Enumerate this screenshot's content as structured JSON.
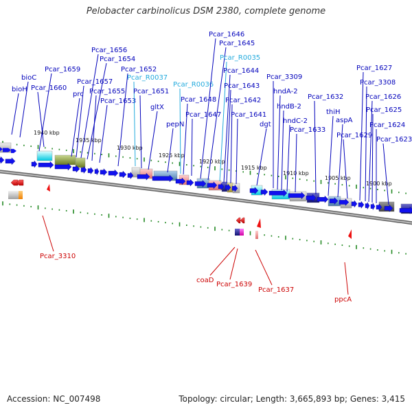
{
  "title": "Pelobacter carbinolicus DSM 2380, complete genome",
  "footer": {
    "accession": "Accession: NC_007498",
    "topology": "Topology: circular; Length: 3,665,893 bp; Genes: 3,415"
  },
  "colors": {
    "forward_label": "#0000bb",
    "rna_label": "#22aadd",
    "reverse_label": "#cc0000",
    "forward_arrow": "#1111ee",
    "reverse_arrow": "#ee1111",
    "backbone": "#888888",
    "tick": "#228822"
  },
  "scale_labels": [
    "1940 kbp",
    "1935 kbp",
    "1930 kbp",
    "1925 kbp",
    "1920 kbp",
    "1915 kbp",
    "1910 kbp",
    "1905 kbp",
    "1900 kbp"
  ],
  "forward_labels": [
    {
      "text": "bioC",
      "kind": "gene"
    },
    {
      "text": "bioH",
      "kind": "gene"
    },
    {
      "text": "Pcar_1659",
      "kind": "gene"
    },
    {
      "text": "Pcar_1660",
      "kind": "gene"
    },
    {
      "text": "Pcar_1656",
      "kind": "gene"
    },
    {
      "text": "Pcar_1654",
      "kind": "gene"
    },
    {
      "text": "Pcar_1657",
      "kind": "gene"
    },
    {
      "text": "prc",
      "kind": "gene"
    },
    {
      "text": "Pcar_1655",
      "kind": "gene"
    },
    {
      "text": "Pcar_1653",
      "kind": "gene"
    },
    {
      "text": "Pcar_1652",
      "kind": "gene"
    },
    {
      "text": "Pcar_R0037",
      "kind": "rna"
    },
    {
      "text": "Pcar_1651",
      "kind": "gene"
    },
    {
      "text": "gltX",
      "kind": "gene"
    },
    {
      "text": "Pcar_R0036",
      "kind": "rna"
    },
    {
      "text": "pepN",
      "kind": "gene"
    },
    {
      "text": "Pcar_1648",
      "kind": "gene"
    },
    {
      "text": "Pcar_1647",
      "kind": "gene"
    },
    {
      "text": "Pcar_1646",
      "kind": "gene"
    },
    {
      "text": "Pcar_1645",
      "kind": "gene"
    },
    {
      "text": "Pcar_R0035",
      "kind": "rna"
    },
    {
      "text": "Pcar_1644",
      "kind": "gene"
    },
    {
      "text": "Pcar_1643",
      "kind": "gene"
    },
    {
      "text": "Pcar_1642",
      "kind": "gene"
    },
    {
      "text": "Pcar_1641",
      "kind": "gene"
    },
    {
      "text": "dgt",
      "kind": "gene"
    },
    {
      "text": "Pcar_3309",
      "kind": "gene"
    },
    {
      "text": "hndA-2",
      "kind": "gene"
    },
    {
      "text": "hndB-2",
      "kind": "gene"
    },
    {
      "text": "hndC-2",
      "kind": "gene"
    },
    {
      "text": "Pcar_1633",
      "kind": "gene"
    },
    {
      "text": "Pcar_1632",
      "kind": "gene"
    },
    {
      "text": "thiH",
      "kind": "gene"
    },
    {
      "text": "aspA",
      "kind": "gene"
    },
    {
      "text": "Pcar_1629",
      "kind": "gene"
    },
    {
      "text": "Pcar_1627",
      "kind": "gene"
    },
    {
      "text": "Pcar_3308",
      "kind": "gene"
    },
    {
      "text": "Pcar_1626",
      "kind": "gene"
    },
    {
      "text": "Pcar_1625",
      "kind": "gene"
    },
    {
      "text": "Pcar_1624",
      "kind": "gene"
    },
    {
      "text": "Pcar_1623",
      "kind": "gene"
    }
  ],
  "reverse_labels": [
    "Pcar_3310",
    "coaD",
    "Pcar_1639",
    "Pcar_1637",
    "ppcA"
  ]
}
